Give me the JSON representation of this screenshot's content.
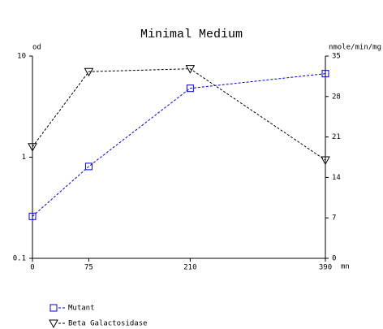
{
  "chart_data": {
    "type": "line",
    "title": "Minimal Medium",
    "ylabel": "od",
    "y2label": "nmole/min/mg",
    "xlabel": "mn",
    "x": [
      0,
      75,
      210,
      390
    ],
    "xlim": [
      0,
      390
    ],
    "xticks": [
      0,
      75,
      210,
      390
    ],
    "yscale": "log",
    "ylim": [
      0.1,
      10
    ],
    "yticks": [
      0.1,
      1,
      10
    ],
    "y2lim": [
      0,
      35
    ],
    "y2ticks": [
      0,
      7,
      14,
      21,
      28,
      35
    ],
    "series": [
      {
        "name": "Mutant",
        "color": "#0000cc",
        "marker": "square",
        "values": [
          0.26,
          0.81,
          4.8,
          6.7
        ]
      },
      {
        "name": "Beta Galactosidase",
        "color": "#000000",
        "marker": "triangle",
        "axis": "y2",
        "values": [
          19.3,
          32.3,
          32.8,
          17.0
        ]
      }
    ]
  }
}
